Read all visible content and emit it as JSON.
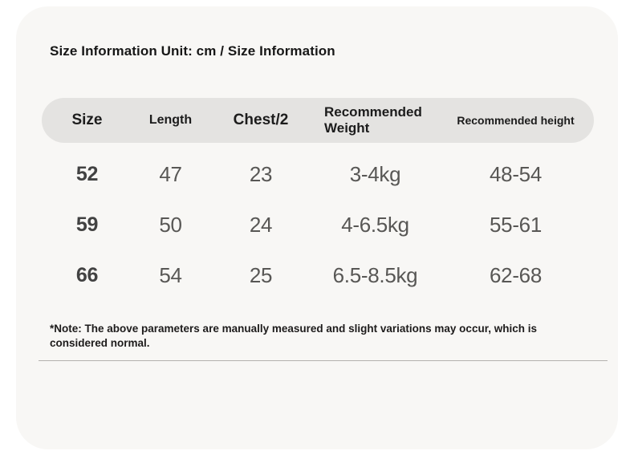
{
  "page": {
    "background_color": "#ffffff",
    "card_background_color": "#f8f7f5",
    "header_background_color": "#e4e3e1",
    "divider_color": "#b3b1ae"
  },
  "title": "Size Information Unit: cm / Size Information",
  "size_table": {
    "columns": [
      {
        "label": "Size"
      },
      {
        "label": "Length"
      },
      {
        "label": "Chest/2"
      },
      {
        "label": "Recommended Weight"
      },
      {
        "label": "Recommended height"
      }
    ],
    "rows": [
      [
        "52",
        "47",
        "23",
        "3-4kg",
        "48-54"
      ],
      [
        "59",
        "50",
        "24",
        "4-6.5kg",
        "55-61"
      ],
      [
        "66",
        "54",
        "25",
        "6.5-8.5kg",
        "62-68"
      ]
    ]
  },
  "note": "*Note: The above parameters are manually measured and slight variations may occur, which is considered normal."
}
